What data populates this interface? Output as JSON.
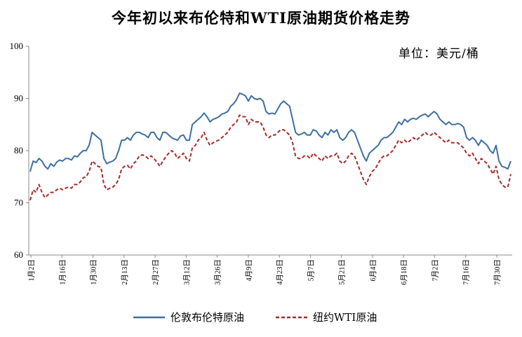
{
  "chart_data": {
    "type": "line",
    "title": "今年初以来布伦特和WTI原油期货价格走势",
    "unit_label": "单位：美元/桶",
    "ylim": [
      60,
      100
    ],
    "yticks": [
      60,
      70,
      80,
      90,
      100
    ],
    "x_tick_labels": [
      "1月2日",
      "1月16日",
      "1月30日",
      "2月13日",
      "2月27日",
      "3月12日",
      "3月26日",
      "4月9日",
      "4月23日",
      "5月7日",
      "5月21日",
      "6月4日",
      "6月18日",
      "7月2日",
      "7月16日",
      "7月30日"
    ],
    "grid": false,
    "legend_position": "bottom",
    "series": [
      {
        "name": "伦敦布伦特原油",
        "color": "#3e6fa0",
        "style": "solid",
        "values": [
          76.0,
          78.0,
          77.7,
          78.5,
          78.0,
          77.0,
          76.5,
          77.5,
          77.0,
          77.8,
          78.2,
          78.0,
          78.5,
          78.5,
          78.2,
          79.0,
          78.8,
          79.5,
          80.0,
          80.0,
          81.0,
          83.5,
          83.0,
          82.5,
          82.0,
          78.5,
          77.5,
          77.8,
          78.0,
          78.5,
          80.0,
          82.0,
          82.0,
          82.5,
          82.0,
          83.0,
          83.5,
          83.5,
          83.2,
          83.0,
          82.5,
          83.5,
          83.5,
          82.5,
          82.0,
          83.5,
          83.5,
          83.0,
          82.5,
          82.2,
          82.0,
          82.8,
          83.0,
          82.0,
          82.0,
          85.0,
          85.5,
          86.0,
          86.5,
          87.2,
          86.5,
          85.5,
          86.0,
          86.2,
          86.5,
          87.0,
          87.2,
          87.5,
          88.5,
          89.0,
          89.8,
          91.0,
          90.8,
          90.5,
          89.5,
          90.5,
          90.0,
          89.8,
          90.0,
          89.5,
          87.5,
          87.0,
          87.2,
          87.0,
          88.0,
          89.0,
          89.5,
          89.0,
          88.5,
          86.0,
          83.5,
          83.0,
          83.2,
          83.5,
          83.0,
          83.0,
          84.0,
          83.8,
          83.0,
          82.5,
          83.5,
          83.0,
          84.0,
          83.5,
          84.0,
          82.5,
          82.0,
          82.5,
          83.5,
          84.0,
          83.5,
          82.0,
          80.5,
          79.0,
          78.0,
          79.5,
          80.0,
          80.5,
          81.0,
          82.0,
          82.5,
          82.5,
          83.0,
          83.5,
          84.5,
          85.5,
          85.0,
          86.0,
          85.5,
          86.0,
          86.2,
          86.0,
          86.5,
          86.8,
          87.0,
          86.5,
          87.0,
          87.5,
          87.0,
          86.0,
          85.5,
          85.0,
          85.5,
          85.0,
          85.0,
          85.2,
          85.0,
          84.5,
          82.5,
          82.0,
          82.5,
          82.0,
          81.0,
          82.0,
          81.5,
          81.0,
          80.0,
          79.5,
          81.0,
          78.0,
          77.0,
          76.8,
          76.5,
          78.0
        ]
      },
      {
        "name": "纽约WTI原油",
        "color": "#a52a2a",
        "style": "dashed",
        "values": [
          70.5,
          72.5,
          72.0,
          73.5,
          72.0,
          71.0,
          71.5,
          72.0,
          72.0,
          72.5,
          72.8,
          72.5,
          72.8,
          73.0,
          72.8,
          73.5,
          73.5,
          74.0,
          74.8,
          75.0,
          76.0,
          78.0,
          77.5,
          77.0,
          76.8,
          73.5,
          72.5,
          72.8,
          73.0,
          73.5,
          74.5,
          76.5,
          77.0,
          77.2,
          76.5,
          77.5,
          78.0,
          79.0,
          79.2,
          79.0,
          78.5,
          79.0,
          78.5,
          77.8,
          77.0,
          78.0,
          78.8,
          79.5,
          80.0,
          79.5,
          78.5,
          79.0,
          79.5,
          78.5,
          78.0,
          80.5,
          81.0,
          82.0,
          82.5,
          83.5,
          82.0,
          81.0,
          81.5,
          81.8,
          82.0,
          82.5,
          83.0,
          83.5,
          84.5,
          85.0,
          85.5,
          86.8,
          86.5,
          86.5,
          85.0,
          86.0,
          85.5,
          85.5,
          85.5,
          84.5,
          83.0,
          82.5,
          83.0,
          83.0,
          83.5,
          84.0,
          84.0,
          83.5,
          83.0,
          81.5,
          79.0,
          78.5,
          78.5,
          79.0,
          79.0,
          78.5,
          79.5,
          79.0,
          78.5,
          78.0,
          79.0,
          78.5,
          79.0,
          79.0,
          79.5,
          78.0,
          77.5,
          78.0,
          79.0,
          79.5,
          79.0,
          77.5,
          76.0,
          74.5,
          73.5,
          75.0,
          76.0,
          76.5,
          77.5,
          78.5,
          79.0,
          79.0,
          79.5,
          80.0,
          81.0,
          82.0,
          81.5,
          82.0,
          81.5,
          82.0,
          82.5,
          82.0,
          82.5,
          83.0,
          83.5,
          83.0,
          83.0,
          83.5,
          83.0,
          82.5,
          82.0,
          81.5,
          82.0,
          81.5,
          81.5,
          81.5,
          81.0,
          80.5,
          79.5,
          79.0,
          79.5,
          78.5,
          77.5,
          78.5,
          78.0,
          77.5,
          76.5,
          75.5,
          77.0,
          74.5,
          73.5,
          73.0,
          73.0,
          75.5
        ]
      }
    ]
  }
}
